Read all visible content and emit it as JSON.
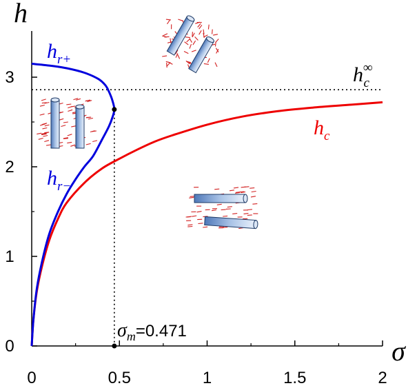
{
  "chart_data": {
    "type": "line",
    "title": "",
    "xlabel": "σ",
    "ylabel": "h",
    "xlim": [
      0,
      2
    ],
    "ylim": [
      0,
      3.5
    ],
    "xticks": [
      "0",
      "0.5",
      "1",
      "1.5",
      "2"
    ],
    "yticks": [
      "0",
      "1",
      "2",
      "3"
    ],
    "series": [
      {
        "name": "h_r+ / h_r−",
        "label_main": "h",
        "label_sub_plus": "r+",
        "label_sub_minus": "r−",
        "color": "#0000dd",
        "x": [
          0,
          0.01,
          0.03,
          0.06,
          0.1,
          0.15,
          0.2,
          0.25,
          0.3,
          0.35,
          0.4,
          0.44,
          0.46,
          0.471,
          0.46,
          0.44,
          0.42,
          0.38,
          0.3,
          0.2,
          0.1,
          0.0
        ],
        "y": [
          0,
          0.3,
          0.65,
          0.95,
          1.25,
          1.5,
          1.7,
          1.86,
          2.0,
          2.12,
          2.3,
          2.45,
          2.55,
          2.64,
          2.74,
          2.84,
          2.91,
          2.98,
          3.05,
          3.1,
          3.13,
          3.15
        ]
      },
      {
        "name": "h_c",
        "label_main": "h",
        "label_sub": "c",
        "color": "#ee0000",
        "x": [
          0,
          0.01,
          0.03,
          0.06,
          0.1,
          0.15,
          0.2,
          0.3,
          0.4,
          0.5,
          0.6,
          0.7,
          0.8,
          1.0,
          1.2,
          1.4,
          1.6,
          1.8,
          2.0
        ],
        "y": [
          0,
          0.3,
          0.62,
          0.9,
          1.18,
          1.42,
          1.6,
          1.82,
          1.98,
          2.09,
          2.19,
          2.28,
          2.35,
          2.47,
          2.56,
          2.62,
          2.66,
          2.69,
          2.72
        ]
      }
    ],
    "reference_lines": {
      "h_c_infinity": {
        "y": 2.86,
        "label_main": "h",
        "label_sub": "c",
        "label_sup": "∞"
      },
      "sigma_m": {
        "x": 0.471,
        "label_main": "σ",
        "label_sub": "m",
        "label_value": "=0.471"
      }
    },
    "marked_point": {
      "x": 0.471,
      "y": 2.64
    },
    "grid": false,
    "legend": "none"
  },
  "schematic_icons": {
    "rod-icon": "#8aaed6",
    "molecule-dash-icon": "#d22020"
  }
}
